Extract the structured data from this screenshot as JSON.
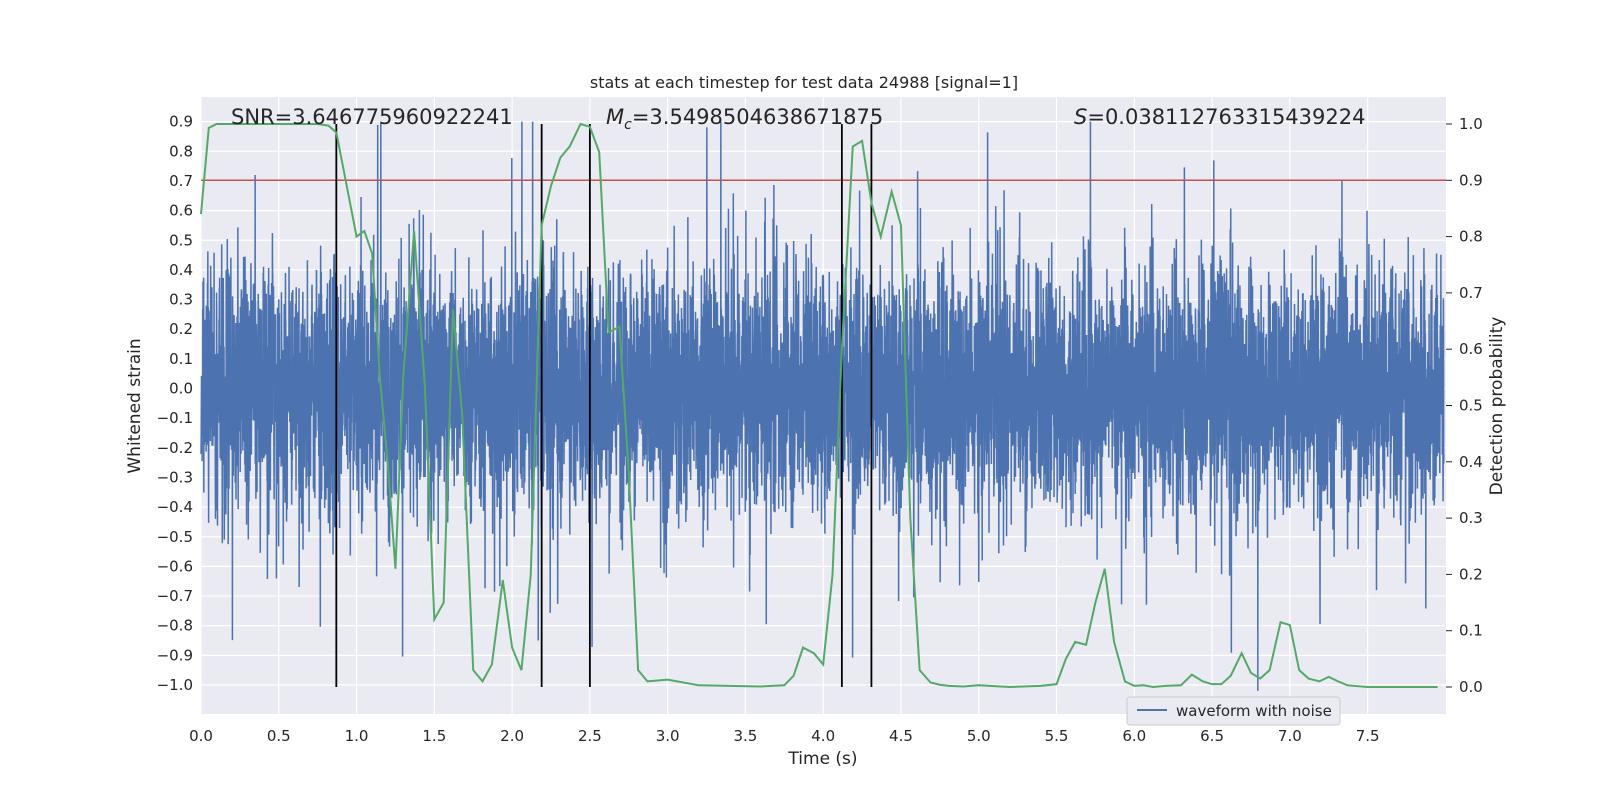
{
  "chart_data": {
    "type": "line",
    "title": "stats at each timestep for test data 24988 [signal=1]",
    "xlabel": "Time (s)",
    "ylabel": "Whitened strain",
    "y2label": "Detection probability",
    "xlim": [
      0.0,
      8.0
    ],
    "ylim": [
      -1.09,
      0.99
    ],
    "y2lim": [
      -0.05,
      1.05
    ],
    "grid": true,
    "x_ticks": [
      "0.0",
      "0.5",
      "1.0",
      "1.5",
      "2.0",
      "2.5",
      "3.0",
      "3.5",
      "4.0",
      "4.5",
      "5.0",
      "5.5",
      "6.0",
      "6.5",
      "7.0",
      "7.5"
    ],
    "x_tick_values": [
      0.0,
      0.5,
      1.0,
      1.5,
      2.0,
      2.5,
      3.0,
      3.5,
      4.0,
      4.5,
      5.0,
      5.5,
      6.0,
      6.5,
      7.0,
      7.5
    ],
    "y_ticks": [
      "0.9",
      "0.8",
      "0.7",
      "0.6",
      "0.5",
      "0.4",
      "0.3",
      "0.2",
      "0.1",
      "0.0",
      "−0.1",
      "−0.2",
      "−0.3",
      "−0.4",
      "−0.5",
      "−0.6",
      "−0.7",
      "−0.8",
      "−0.9",
      "−1.0"
    ],
    "y_tick_values": [
      0.9,
      0.8,
      0.7,
      0.6,
      0.5,
      0.4,
      0.3,
      0.2,
      0.1,
      0.0,
      -0.1,
      -0.2,
      -0.3,
      -0.4,
      -0.5,
      -0.6,
      -0.7,
      -0.8,
      -0.9,
      -1.0
    ],
    "y2_ticks": [
      "1.0",
      "0.9",
      "0.8",
      "0.7",
      "0.6",
      "0.5",
      "0.4",
      "0.3",
      "0.2",
      "0.1",
      "0.0"
    ],
    "y2_tick_values": [
      1.0,
      0.9,
      0.8,
      0.7,
      0.6,
      0.5,
      0.4,
      0.3,
      0.2,
      0.1,
      0.0
    ],
    "annotations": {
      "snr": "SNR=3.646775960922241",
      "mc_symbol": "M",
      "mc_sub": "c",
      "mc_value": "=3.5498504638671875",
      "s_symbol": "S",
      "s_value": "=0.038112763315439224"
    },
    "legend": {
      "label": "waveform with noise",
      "position": "lower-right"
    },
    "waveform_series": {
      "name": "waveform with noise",
      "color": "#4c72b0",
      "sample_rate_hz": 1000,
      "duration_s": 7.99,
      "core_amplitude": 0.3,
      "typical_peak_amplitude": 0.55,
      "max_amplitude": 0.9
    },
    "probability_series": {
      "name": "detection probability",
      "color": "#55a868",
      "x": [
        0.0,
        0.05,
        0.1,
        0.2,
        0.3,
        0.4,
        0.5,
        0.6,
        0.7,
        0.75,
        0.82,
        0.87,
        0.93,
        1.0,
        1.05,
        1.1,
        1.15,
        1.2,
        1.25,
        1.3,
        1.37,
        1.44,
        1.5,
        1.56,
        1.62,
        1.68,
        1.75,
        1.81,
        1.87,
        1.94,
        2.0,
        2.06,
        2.12,
        2.19,
        2.25,
        2.31,
        2.37,
        2.44,
        2.5,
        2.56,
        2.62,
        2.69,
        2.75,
        2.81,
        2.87,
        3.0,
        3.2,
        3.4,
        3.6,
        3.75,
        3.81,
        3.87,
        3.94,
        4.0,
        4.06,
        4.12,
        4.19,
        4.25,
        4.31,
        4.37,
        4.44,
        4.5,
        4.56,
        4.62,
        4.69,
        4.75,
        4.81,
        4.9,
        5.0,
        5.2,
        5.4,
        5.5,
        5.56,
        5.62,
        5.69,
        5.75,
        5.81,
        5.87,
        5.94,
        6.0,
        6.06,
        6.12,
        6.2,
        6.3,
        6.37,
        6.44,
        6.5,
        6.56,
        6.62,
        6.69,
        6.75,
        6.81,
        6.87,
        6.94,
        7.0,
        7.06,
        7.12,
        7.19,
        7.25,
        7.31,
        7.37,
        7.5,
        7.7,
        7.9,
        7.95
      ],
      "y": [
        0.84,
        0.993,
        1.0,
        1.0,
        1.0,
        1.0,
        1.0,
        1.0,
        1.0,
        1.0,
        0.997,
        0.985,
        0.9,
        0.8,
        0.81,
        0.77,
        0.55,
        0.4,
        0.21,
        0.55,
        0.81,
        0.53,
        0.12,
        0.15,
        0.67,
        0.48,
        0.03,
        0.01,
        0.04,
        0.19,
        0.07,
        0.03,
        0.2,
        0.82,
        0.89,
        0.94,
        0.96,
        1.0,
        0.995,
        0.95,
        0.63,
        0.64,
        0.38,
        0.03,
        0.01,
        0.013,
        0.003,
        0.002,
        0.001,
        0.003,
        0.02,
        0.07,
        0.06,
        0.04,
        0.2,
        0.6,
        0.96,
        0.97,
        0.86,
        0.8,
        0.88,
        0.82,
        0.3,
        0.03,
        0.008,
        0.004,
        0.002,
        0.001,
        0.003,
        0.0,
        0.002,
        0.005,
        0.05,
        0.08,
        0.075,
        0.15,
        0.21,
        0.08,
        0.01,
        0.002,
        0.003,
        0.0,
        0.002,
        0.003,
        0.022,
        0.01,
        0.005,
        0.005,
        0.02,
        0.06,
        0.025,
        0.015,
        0.03,
        0.115,
        0.11,
        0.03,
        0.015,
        0.01,
        0.018,
        0.01,
        0.003,
        0.0,
        0.0,
        0.0,
        0.0
      ]
    },
    "threshold_line": {
      "y2": 0.9,
      "color": "#c44e52"
    },
    "vertical_markers_x": [
      0.87,
      2.19,
      2.5,
      4.12,
      4.31
    ]
  }
}
